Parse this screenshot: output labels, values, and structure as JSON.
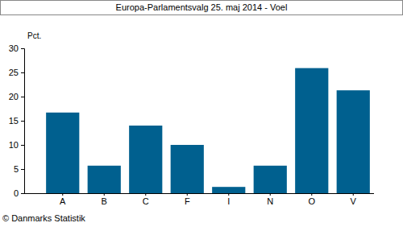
{
  "chart_data": {
    "type": "bar",
    "title": "Europa-Parlamentsvalg 25. maj 2014 - Voel",
    "y_label": "Pct.",
    "annotations": [
      "© Danmarks Statistik"
    ],
    "categories": [
      "A",
      "B",
      "C",
      "F",
      "I",
      "N",
      "O",
      "V"
    ],
    "values": [
      16.7,
      5.7,
      14.0,
      10.0,
      1.3,
      5.7,
      25.9,
      21.3
    ],
    "color": "#00608f",
    "ylim": [
      0,
      30
    ],
    "yticks": [
      0,
      5,
      10,
      15,
      20,
      25,
      30
    ],
    "grid": false
  }
}
